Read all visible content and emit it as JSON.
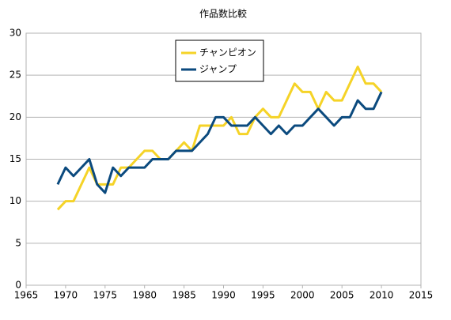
{
  "chart_data": {
    "type": "line",
    "title": "作品数比較",
    "x": [
      1969,
      1970,
      1971,
      1972,
      1973,
      1974,
      1975,
      1976,
      1977,
      1978,
      1979,
      1980,
      1981,
      1982,
      1983,
      1984,
      1985,
      1986,
      1987,
      1988,
      1989,
      1990,
      1991,
      1992,
      1993,
      1994,
      1995,
      1996,
      1997,
      1998,
      1999,
      2000,
      2001,
      2002,
      2003,
      2004,
      2005,
      2006,
      2007,
      2008,
      2009,
      2010
    ],
    "series": [
      {
        "name": "チャンピオン",
        "color": "#f5d327",
        "values": [
          9,
          10,
          10,
          12,
          14,
          12,
          12,
          12,
          14,
          14,
          15,
          16,
          16,
          15,
          15,
          16,
          17,
          16,
          19,
          19,
          19,
          19,
          20,
          18,
          18,
          20,
          21,
          20,
          20,
          22,
          24,
          23,
          23,
          21,
          23,
          22,
          22,
          24,
          26,
          24,
          24,
          23
        ]
      },
      {
        "name": "ジャンプ",
        "color": "#0b4a7e",
        "values": [
          12,
          14,
          13,
          14,
          15,
          12,
          11,
          14,
          13,
          14,
          14,
          14,
          15,
          15,
          15,
          16,
          16,
          16,
          17,
          18,
          20,
          20,
          19,
          19,
          19,
          20,
          19,
          18,
          19,
          18,
          19,
          19,
          20,
          21,
          20,
          19,
          20,
          20,
          22,
          21,
          21,
          23
        ]
      }
    ],
    "xlim": [
      1965,
      2015
    ],
    "xticks": [
      1965,
      1970,
      1975,
      1980,
      1985,
      1990,
      1995,
      2000,
      2005,
      2010,
      2015
    ],
    "ylim": [
      0,
      30
    ],
    "yticks": [
      0,
      5,
      10,
      15,
      20,
      25,
      30
    ],
    "grid": true
  }
}
